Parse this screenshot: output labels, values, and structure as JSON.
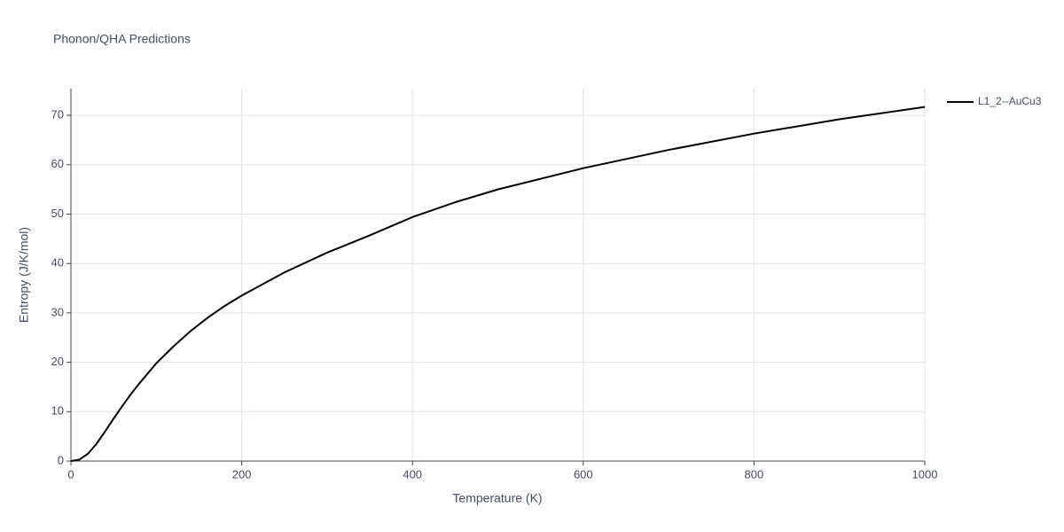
{
  "chart_data": {
    "type": "line",
    "title": "Phonon/QHA Predictions",
    "x_label": "Temperature (K)",
    "y_label": "Entropy (J/K/mol)",
    "x": [
      0,
      10,
      20,
      30,
      40,
      50,
      60,
      70,
      80,
      100,
      120,
      140,
      160,
      180,
      200,
      250,
      300,
      350,
      400,
      450,
      500,
      600,
      700,
      800,
      900,
      1000
    ],
    "series": [
      {
        "name": "L1_2--AuCu3",
        "color": "#000000",
        "values": [
          0,
          0.3,
          1.5,
          3.5,
          6,
          8.6,
          11.1,
          13.5,
          15.7,
          19.8,
          23.2,
          26.3,
          29.0,
          31.4,
          33.5,
          38.2,
          42.2,
          45.7,
          49.4,
          52.4,
          55.0,
          59.3,
          63.0,
          66.3,
          69.2,
          71.7
        ]
      }
    ],
    "xlim": [
      0,
      1000
    ],
    "xticks": [
      0,
      200,
      400,
      600,
      800,
      1000
    ],
    "ylim": [
      0,
      75.4
    ],
    "yticks": [
      0,
      10,
      20,
      30,
      40,
      50,
      60,
      70
    ],
    "grid": true,
    "legend": "right"
  }
}
